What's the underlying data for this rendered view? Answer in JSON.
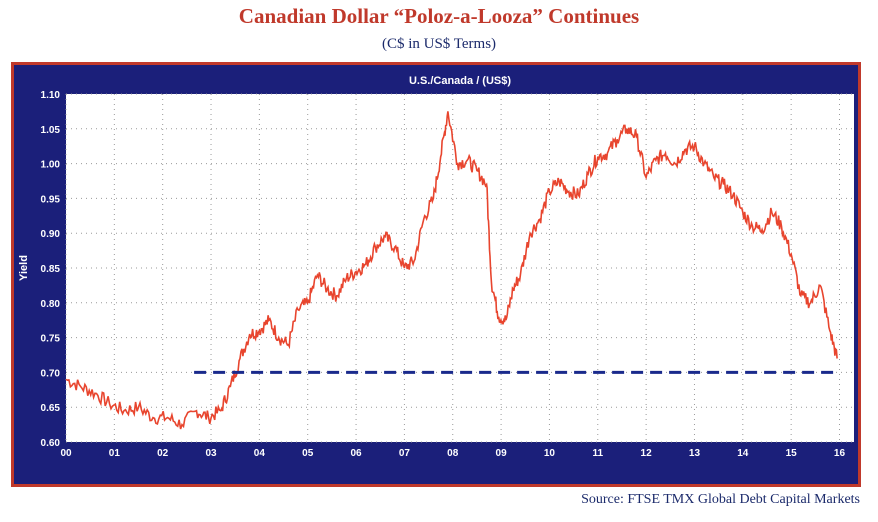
{
  "header": {
    "title": "Canadian Dollar “Poloz-a-Looza” Continues",
    "subtitle": "(C$ in US$ Terms)"
  },
  "footer": {
    "source": "Source: FTSE TMX Global Debt Capital Markets"
  },
  "colors": {
    "title": "#c0392b",
    "frame_border": "#c0392b",
    "frame_background": "#1b1f7a",
    "plot_background": "#ffffff",
    "series_line": "#e8452e",
    "reference_line": "#1a2a8c"
  },
  "chart_data": {
    "type": "line",
    "title": "U.S./Canada / (US$)",
    "xlabel": "",
    "ylabel": "Yield",
    "xlim": [
      2000,
      2016.3
    ],
    "ylim": [
      0.6,
      1.1
    ],
    "grid": true,
    "x_ticks": [
      "00",
      "01",
      "02",
      "03",
      "04",
      "05",
      "06",
      "07",
      "08",
      "09",
      "10",
      "11",
      "12",
      "13",
      "14",
      "15",
      "16"
    ],
    "y_ticks": [
      "0.60",
      "0.65",
      "0.70",
      "0.75",
      "0.80",
      "0.85",
      "0.90",
      "0.95",
      "1.00",
      "1.05",
      "1.10"
    ],
    "series": [
      {
        "x": [
          2000.0,
          2000.3,
          2000.6,
          2000.9,
          2001.2,
          2001.5,
          2001.8,
          2002.1,
          2002.4,
          2002.7,
          2002.95,
          2003.2,
          2003.4,
          2003.6,
          2003.8,
          2004.0,
          2004.2,
          2004.4,
          2004.6,
          2004.8,
          2005.0,
          2005.2,
          2005.4,
          2005.6,
          2005.8,
          2006.0,
          2006.2,
          2006.4,
          2006.6,
          2006.8,
          2007.0,
          2007.2,
          2007.4,
          2007.6,
          2007.75,
          2007.9,
          2008.1,
          2008.3,
          2008.5,
          2008.7,
          2008.8,
          2008.95,
          2009.1,
          2009.25,
          2009.4,
          2009.6,
          2009.8,
          2010.0,
          2010.2,
          2010.4,
          2010.6,
          2010.8,
          2011.0,
          2011.2,
          2011.4,
          2011.6,
          2011.8,
          2012.0,
          2012.2,
          2012.4,
          2012.6,
          2012.8,
          2013.0,
          2013.2,
          2013.4,
          2013.6,
          2013.8,
          2014.0,
          2014.2,
          2014.4,
          2014.6,
          2014.8,
          2015.0,
          2015.2,
          2015.4,
          2015.6,
          2015.8,
          2015.95
        ],
        "values": [
          0.69,
          0.68,
          0.67,
          0.655,
          0.645,
          0.65,
          0.635,
          0.635,
          0.625,
          0.645,
          0.635,
          0.645,
          0.68,
          0.72,
          0.755,
          0.76,
          0.775,
          0.75,
          0.74,
          0.79,
          0.8,
          0.84,
          0.82,
          0.81,
          0.835,
          0.845,
          0.855,
          0.88,
          0.895,
          0.88,
          0.85,
          0.86,
          0.92,
          0.95,
          1.01,
          1.075,
          1.0,
          1.005,
          0.99,
          0.97,
          0.83,
          0.78,
          0.775,
          0.82,
          0.84,
          0.9,
          0.92,
          0.96,
          0.975,
          0.96,
          0.955,
          0.985,
          1.01,
          1.015,
          1.035,
          1.05,
          1.04,
          0.98,
          1.005,
          1.015,
          1.0,
          1.02,
          1.025,
          1.0,
          0.98,
          0.97,
          0.955,
          0.93,
          0.91,
          0.905,
          0.93,
          0.91,
          0.87,
          0.81,
          0.8,
          0.825,
          0.76,
          0.72
        ]
      }
    ],
    "reference_line": {
      "y": 0.7,
      "x_start": 2002.65,
      "x_end": 2016.0,
      "style": "dashed"
    }
  }
}
